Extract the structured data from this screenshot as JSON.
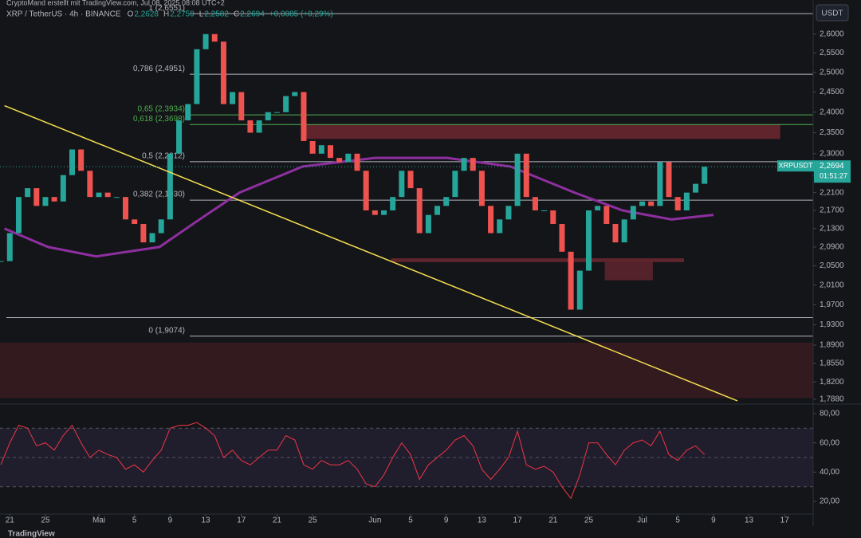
{
  "header": {
    "watermark": "CryptoMand erstellt mit TradingView.com, Jul 08, 2025 08:08 UTC+2",
    "symbol": "XRP / TetherUS · 4h · BINANCE",
    "ohlc": [
      {
        "key": "O",
        "value": "2,2628"
      },
      {
        "key": "H",
        "value": "2,2759"
      },
      {
        "key": "L",
        "value": "2,2582"
      },
      {
        "key": "C",
        "value": "2,2694"
      }
    ],
    "change": "+0,0085 (+0,29%)"
  },
  "currency": "USDT",
  "price_tag": {
    "symbol": "XRPUSDT",
    "price": {
      "value": 2.2694,
      "label": "2,2694"
    },
    "countdown": "01:51:27"
  },
  "footer": "TradingView",
  "chart_data": [
    {
      "type": "candlestick",
      "log": true,
      "up_color": "#26a69a",
      "down_color": "#ef5350",
      "xlim": [
        -1.1,
        90.2
      ],
      "ylim": [
        1.782,
        2.675
      ],
      "yticks": [
        {
          "value": 2.6,
          "label": "2,6000"
        },
        {
          "value": 2.55,
          "label": "2,5500"
        },
        {
          "value": 2.5,
          "label": "2,5000"
        },
        {
          "value": 2.45,
          "label": "2,4500"
        },
        {
          "value": 2.4,
          "label": "2,4000"
        },
        {
          "value": 2.35,
          "label": "2,3500"
        },
        {
          "value": 2.3,
          "label": "2,3000"
        },
        {
          "value": 2.25,
          "label": "2,2500"
        },
        {
          "value": 2.21,
          "label": "2,2100"
        },
        {
          "value": 2.17,
          "label": "2,1700"
        },
        {
          "value": 2.13,
          "label": "2,1300"
        },
        {
          "value": 2.09,
          "label": "2,0900"
        },
        {
          "value": 2.05,
          "label": "2,0500"
        },
        {
          "value": 2.01,
          "label": "2,0100"
        },
        {
          "value": 1.97,
          "label": "1,9700"
        },
        {
          "value": 1.93,
          "label": "1,9300"
        },
        {
          "value": 1.89,
          "label": "1,8900"
        },
        {
          "value": 1.855,
          "label": "1,8550"
        },
        {
          "value": 1.82,
          "label": "1,8200"
        },
        {
          "value": 1.788,
          "label": "1,7880"
        }
      ],
      "x": [
        -1,
        0,
        1,
        2,
        3,
        4,
        5,
        6,
        7,
        8,
        9,
        10,
        11,
        12,
        13,
        14,
        15,
        16,
        17,
        18,
        19,
        20,
        21,
        22,
        23,
        24,
        25,
        26,
        27,
        28,
        29,
        30,
        31,
        32,
        33,
        34,
        35,
        36,
        37,
        38,
        39,
        40,
        41,
        42,
        43,
        44,
        45,
        46,
        47,
        48,
        49,
        50,
        51,
        52,
        53,
        54,
        55,
        56,
        57,
        58,
        59,
        60,
        61,
        62,
        63,
        64,
        65,
        66,
        67,
        68,
        69,
        70,
        71,
        72,
        73,
        74,
        75,
        76,
        77,
        78
      ],
      "values": [
        2.06,
        2.12,
        2.2,
        2.22,
        2.18,
        2.2,
        2.19,
        2.25,
        2.31,
        2.26,
        2.2,
        2.21,
        2.2,
        2.2,
        2.15,
        2.14,
        2.1,
        2.12,
        2.15,
        2.3,
        2.38,
        2.42,
        2.56,
        2.6,
        2.58,
        2.42,
        2.45,
        2.38,
        2.35,
        2.38,
        2.4,
        2.4,
        2.44,
        2.45,
        2.33,
        2.3,
        2.32,
        2.29,
        2.28,
        2.3,
        2.26,
        2.17,
        2.16,
        2.17,
        2.2,
        2.26,
        2.22,
        2.12,
        2.16,
        2.18,
        2.2,
        2.26,
        2.29,
        2.26,
        2.18,
        2.12,
        2.15,
        2.18,
        2.3,
        2.2,
        2.17,
        2.17,
        2.14,
        2.08,
        1.96,
        2.04,
        2.17,
        2.18,
        2.14,
        2.1,
        2.15,
        2.18,
        2.19,
        2.18,
        2.28,
        2.2,
        2.17,
        2.21,
        2.23,
        2.2694
      ],
      "fib_levels": [
        {
          "value": 2.6551,
          "label": "1 (2,6551)",
          "color": "#b2b5be"
        },
        {
          "value": 2.4951,
          "label": "0,786 (2,4951)",
          "color": "#b2b5be"
        },
        {
          "value": 2.3934,
          "label": "0,65 (2,3934)",
          "color": "#4caf50"
        },
        {
          "value": 2.3698,
          "label": "0,618 (2,3698)",
          "color": "#4caf50"
        },
        {
          "value": 2.2812,
          "label": "0,5 (2,2812)",
          "color": "#b2b5be"
        },
        {
          "value": 2.193,
          "label": "0,382 (2,1930)",
          "color": "#b2b5be"
        },
        {
          "value": 1.9074,
          "label": "0 (1,9074)",
          "color": "#b2b5be"
        }
      ],
      "horizontal_lines": [
        1.944
      ],
      "zones": [
        {
          "price": [
            2.335,
            2.37
          ],
          "days": [
            33,
            86.5
          ],
          "color": "#7a2a33"
        },
        {
          "price": [
            2.058,
            2.066
          ],
          "days": [
            42.8,
            75.7
          ],
          "color": "#7a2a33"
        },
        {
          "price": [
            2.02,
            2.058
          ],
          "days": [
            66.8,
            72.2
          ],
          "color": "#6a2730"
        },
        {
          "price": [
            1.79,
            1.895
          ],
          "days": [
            -1.1,
            90.2
          ],
          "color": "#3e1c22"
        }
      ],
      "trendline": {
        "x": [
          -0.6,
          81.7
        ],
        "values": [
          2.416,
          1.785
        ],
        "color": "#f5e050"
      },
      "moving_average": {
        "color": "#8e2fa0",
        "x": [
          -0.6,
          4.3,
          9.7,
          16.8,
          21.3,
          25.8,
          32.9,
          41.0,
          49.1,
          56.2,
          63.4,
          68.8,
          74.3,
          79.0
        ],
        "values": [
          2.13,
          2.09,
          2.07,
          2.09,
          2.15,
          2.21,
          2.27,
          2.29,
          2.29,
          2.27,
          2.21,
          2.17,
          2.15,
          2.16
        ]
      }
    },
    {
      "type": "line",
      "color": "#f23645",
      "band_color": "#7e57c2",
      "xlim": [
        -1.1,
        90.2
      ],
      "ylim": [
        11.3,
        87.6
      ],
      "yticks": [
        {
          "value": 80,
          "label": "80,00"
        },
        {
          "value": 60,
          "label": "60,00"
        },
        {
          "value": 40,
          "label": "40,00"
        },
        {
          "value": 20,
          "label": "20,00"
        }
      ],
      "levels": [
        70,
        50,
        30
      ],
      "xticks": [
        {
          "value": 0,
          "label": "21"
        },
        {
          "value": 4,
          "label": "25"
        },
        {
          "value": 10,
          "label": "Mai"
        },
        {
          "value": 14,
          "label": "5"
        },
        {
          "value": 18,
          "label": "9"
        },
        {
          "value": 22,
          "label": "13"
        },
        {
          "value": 26,
          "label": "17"
        },
        {
          "value": 30,
          "label": "21"
        },
        {
          "value": 34,
          "label": "25"
        },
        {
          "value": 41,
          "label": "Jun"
        },
        {
          "value": 45,
          "label": "5"
        },
        {
          "value": 49,
          "label": "9"
        },
        {
          "value": 53,
          "label": "13"
        },
        {
          "value": 57,
          "label": "17"
        },
        {
          "value": 61,
          "label": "21"
        },
        {
          "value": 65,
          "label": "25"
        },
        {
          "value": 71,
          "label": "Jul"
        },
        {
          "value": 75,
          "label": "5"
        },
        {
          "value": 79,
          "label": "9"
        },
        {
          "value": 83,
          "label": "13"
        },
        {
          "value": 87,
          "label": "17"
        }
      ],
      "x": [
        -1,
        0,
        1,
        2,
        3,
        4,
        5,
        6,
        7,
        8,
        9,
        10,
        11,
        12,
        13,
        14,
        15,
        16,
        17,
        18,
        19,
        20,
        21,
        22,
        23,
        24,
        25,
        26,
        27,
        28,
        29,
        30,
        31,
        32,
        33,
        34,
        35,
        36,
        37,
        38,
        39,
        40,
        41,
        42,
        43,
        44,
        45,
        46,
        47,
        48,
        49,
        50,
        51,
        52,
        53,
        54,
        55,
        56,
        57,
        58,
        59,
        60,
        61,
        62,
        63,
        64,
        65,
        66,
        67,
        68,
        69,
        70,
        71,
        72,
        73,
        74,
        75,
        76,
        77,
        78
      ],
      "values": [
        45,
        60,
        72,
        70,
        58,
        60,
        55,
        65,
        72,
        60,
        50,
        55,
        52,
        50,
        42,
        45,
        40,
        48,
        55,
        70,
        72,
        72,
        74,
        70,
        65,
        50,
        55,
        48,
        45,
        50,
        55,
        55,
        65,
        62,
        45,
        42,
        48,
        45,
        45,
        48,
        42,
        32,
        30,
        38,
        50,
        60,
        52,
        35,
        45,
        50,
        55,
        62,
        65,
        58,
        42,
        35,
        42,
        50,
        68,
        45,
        42,
        44,
        40,
        30,
        22,
        38,
        60,
        60,
        52,
        45,
        55,
        60,
        62,
        58,
        68,
        52,
        48,
        55,
        58,
        52
      ]
    }
  ]
}
